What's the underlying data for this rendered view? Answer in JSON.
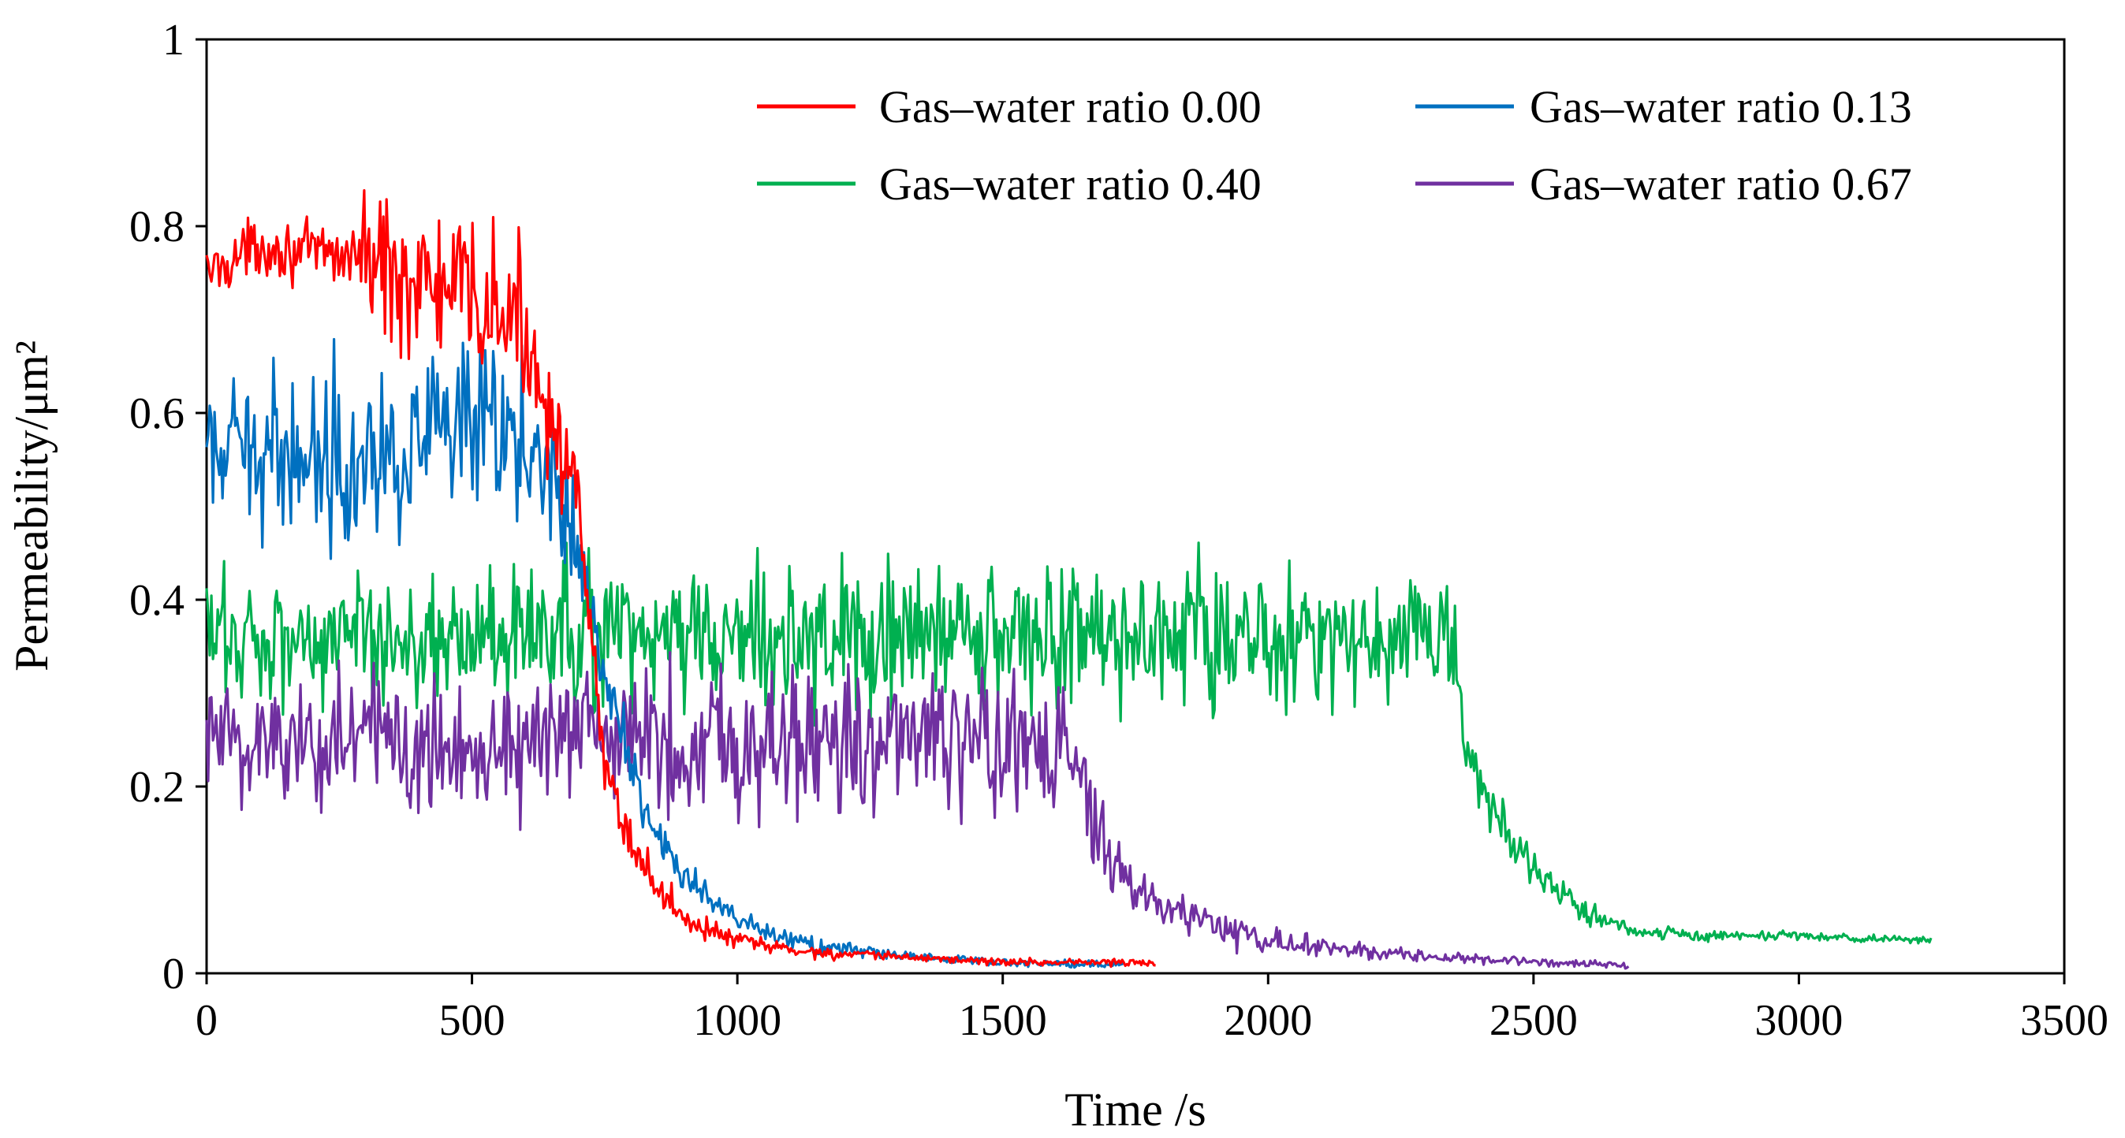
{
  "chart_data": {
    "type": "line",
    "title": "",
    "xlabel": "Time /s",
    "ylabel": "Permeability/μm²",
    "xlim": [
      0,
      3500
    ],
    "ylim": [
      0,
      1
    ],
    "xticks": [
      0,
      500,
      1000,
      1500,
      2000,
      2500,
      3000,
      3500
    ],
    "yticks": [
      0,
      0.2,
      0.4,
      0.6,
      0.8,
      1
    ],
    "ytick_labels": [
      "0",
      "0.2",
      "0.4",
      "0.6",
      "0.8",
      "1"
    ],
    "grid": false,
    "legend_position": "top-right",
    "series": [
      {
        "name": "Gas–water ratio 0.00",
        "color": "#ff0000",
        "x": [
          0,
          100,
          200,
          300,
          330,
          400,
          500,
          600,
          650,
          700,
          720,
          750,
          800,
          850,
          900,
          950,
          1000,
          1100,
          1200,
          1300,
          1400,
          1500,
          1600,
          1700,
          1790
        ],
        "y": [
          0.75,
          0.78,
          0.77,
          0.77,
          0.76,
          0.74,
          0.72,
          0.69,
          0.6,
          0.5,
          0.38,
          0.22,
          0.14,
          0.09,
          0.06,
          0.045,
          0.035,
          0.025,
          0.02,
          0.018,
          0.015,
          0.012,
          0.012,
          0.012,
          0.01
        ],
        "noise": [
          0.015,
          0.015,
          0.015,
          0.025,
          0.04,
          0.04,
          0.045,
          0.04,
          0.03,
          0.02,
          0.02,
          0.015,
          0.012,
          0.01,
          0.008,
          0.006,
          0.005,
          0.004,
          0.003,
          0.002,
          0.002,
          0.002,
          0.002,
          0.002,
          0.002
        ]
      },
      {
        "name": "Gas–water ratio 0.13",
        "color": "#0070c0",
        "x": [
          0,
          100,
          200,
          300,
          400,
          500,
          600,
          650,
          700,
          720,
          750,
          800,
          850,
          900,
          1000,
          1100,
          1200,
          1300,
          1400,
          1500,
          1600,
          1700,
          1730
        ],
        "y": [
          0.55,
          0.56,
          0.56,
          0.56,
          0.57,
          0.57,
          0.57,
          0.55,
          0.46,
          0.4,
          0.32,
          0.22,
          0.15,
          0.1,
          0.055,
          0.035,
          0.025,
          0.02,
          0.015,
          0.012,
          0.01,
          0.01,
          0.01
        ],
        "noise": [
          0.035,
          0.04,
          0.04,
          0.05,
          0.05,
          0.05,
          0.05,
          0.04,
          0.03,
          0.025,
          0.02,
          0.015,
          0.012,
          0.01,
          0.006,
          0.005,
          0.004,
          0.003,
          0.002,
          0.002,
          0.002,
          0.002,
          0.002
        ]
      },
      {
        "name": "Gas–water ratio 0.40",
        "color": "#00b050",
        "x": [
          0,
          500,
          1000,
          1500,
          2000,
          2350,
          2370,
          2400,
          2450,
          2500,
          2550,
          2600,
          2700,
          2800,
          3000,
          3250
        ],
        "y": [
          0.36,
          0.36,
          0.36,
          0.36,
          0.36,
          0.36,
          0.24,
          0.2,
          0.15,
          0.11,
          0.085,
          0.065,
          0.045,
          0.04,
          0.04,
          0.035
        ],
        "noise": [
          0.035,
          0.035,
          0.04,
          0.04,
          0.04,
          0.035,
          0.02,
          0.015,
          0.012,
          0.01,
          0.008,
          0.006,
          0.004,
          0.003,
          0.002,
          0.002
        ]
      },
      {
        "name": "Gas–water ratio 0.67",
        "color": "#7030a0",
        "x": [
          0,
          300,
          600,
          1000,
          1300,
          1600,
          1650,
          1700,
          1800,
          1900,
          2000,
          2100,
          2200,
          2300,
          2500,
          2680
        ],
        "y": [
          0.25,
          0.25,
          0.25,
          0.25,
          0.25,
          0.24,
          0.2,
          0.11,
          0.075,
          0.05,
          0.035,
          0.028,
          0.022,
          0.018,
          0.012,
          0.008
        ],
        "noise": [
          0.035,
          0.04,
          0.04,
          0.04,
          0.04,
          0.035,
          0.025,
          0.02,
          0.012,
          0.01,
          0.008,
          0.006,
          0.004,
          0.003,
          0.002,
          0.002
        ]
      }
    ]
  }
}
